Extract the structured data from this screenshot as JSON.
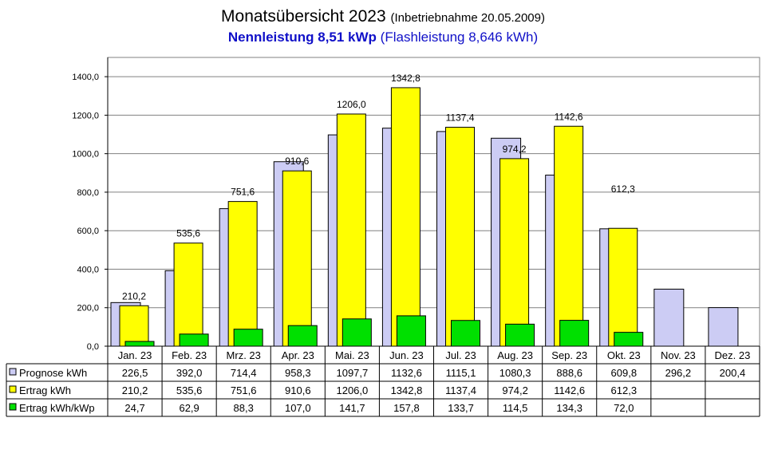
{
  "title": {
    "main": "Monatsübersicht 2023",
    "note": "(Inbetriebnahme  20.05.2009)",
    "subtitle_bold": "Nennleistung 8,51 kWp",
    "subtitle_rest": "(Flashleistung 8,646 kWh)"
  },
  "colors": {
    "prognose": "#ccccf4",
    "ertrag": "#ffff00",
    "ertrag_kwp": "#00e000",
    "grid": "#808080"
  },
  "chart_data": {
    "type": "bar",
    "categories": [
      "Jan. 23",
      "Feb. 23",
      "Mrz. 23",
      "Apr. 23",
      "Mai. 23",
      "Jun. 23",
      "Jul. 23",
      "Aug. 23",
      "Sep. 23",
      "Okt. 23",
      "Nov. 23",
      "Dez. 23"
    ],
    "series": [
      {
        "name": "Prognose kWh",
        "values": [
          226.5,
          392.0,
          714.4,
          958.3,
          1097.7,
          1132.6,
          1115.1,
          1080.3,
          888.6,
          609.8,
          296.2,
          200.4
        ],
        "labels": [
          "226,5",
          "392,0",
          "714,4",
          "958,3",
          "1097,7",
          "1132,6",
          "1115,1",
          "1080,3",
          "888,6",
          "609,8",
          "296,2",
          "200,4"
        ]
      },
      {
        "name": "Ertrag kWh",
        "values": [
          210.2,
          535.6,
          751.6,
          910.6,
          1206.0,
          1342.8,
          1137.4,
          974.2,
          1142.6,
          612.3,
          null,
          null
        ],
        "labels": [
          "210,2",
          "535,6",
          "751,6",
          "910,6",
          "1206,0",
          "1342,8",
          "1137,4",
          "974,2",
          "1142,6",
          "612,3",
          "",
          ""
        ]
      },
      {
        "name": "Ertrag kWh/kWp",
        "values": [
          24.7,
          62.9,
          88.3,
          107.0,
          141.7,
          157.8,
          133.7,
          114.5,
          134.3,
          72.0,
          null,
          null
        ],
        "labels": [
          "24,7",
          "62,9",
          "88,3",
          "107,0",
          "141,7",
          "157,8",
          "133,7",
          "114,5",
          "134,3",
          "72,0",
          "",
          ""
        ]
      }
    ],
    "y_ticks": [
      "0,0",
      "200,0",
      "400,0",
      "600,0",
      "800,0",
      "1000,0",
      "1200,0",
      "1400,0"
    ],
    "ylim": [
      0,
      1500
    ],
    "grid": true,
    "legend": "data-table-left"
  }
}
